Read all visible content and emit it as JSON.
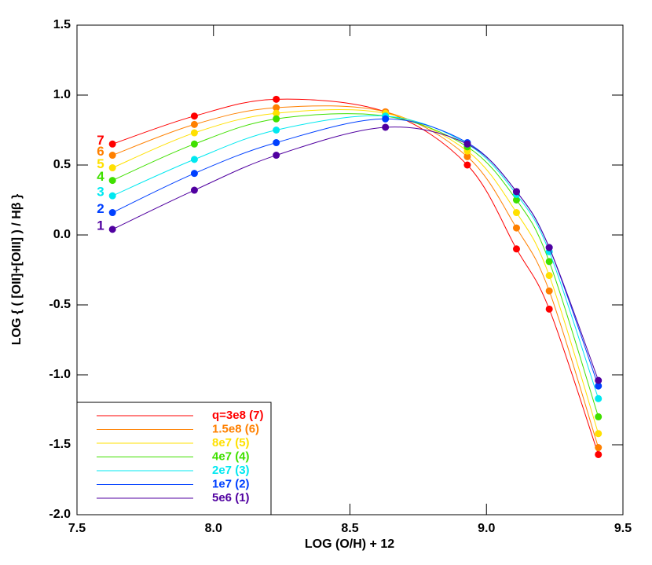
{
  "chart_data": {
    "type": "line",
    "x_label": "LOG (O/H) + 12",
    "y_label": "LOG { ( [OII]+[OIII] ) / Hβ }",
    "x": [
      7.63,
      7.93,
      8.23,
      8.63,
      8.93,
      9.11,
      9.23,
      9.41
    ],
    "series": [
      {
        "name": "q=3e8 (7)",
        "label": "7",
        "color": "#ff0000",
        "values": [
          0.65,
          0.85,
          0.97,
          0.88,
          0.5,
          -0.1,
          -0.53,
          -1.57
        ]
      },
      {
        "name": "1.5e8 (6)",
        "label": "6",
        "color": "#ff8000",
        "values": [
          0.57,
          0.79,
          0.91,
          0.88,
          0.56,
          0.05,
          -0.4,
          -1.52
        ]
      },
      {
        "name": "8e7 (5)",
        "label": "5",
        "color": "#ffe000",
        "values": [
          0.48,
          0.73,
          0.87,
          0.87,
          0.6,
          0.16,
          -0.29,
          -1.42
        ]
      },
      {
        "name": "4e7 (4)",
        "label": "4",
        "color": "#40e000",
        "values": [
          0.39,
          0.65,
          0.83,
          0.85,
          0.63,
          0.25,
          -0.19,
          -1.3
        ]
      },
      {
        "name": "2e7 (3)",
        "label": "3",
        "color": "#00e8f0",
        "values": [
          0.28,
          0.54,
          0.75,
          0.85,
          0.65,
          0.29,
          -0.12,
          -1.17
        ]
      },
      {
        "name": "1e7 (2)",
        "label": "2",
        "color": "#0040ff",
        "values": [
          0.16,
          0.44,
          0.66,
          0.83,
          0.66,
          0.31,
          -0.09,
          -1.08
        ]
      },
      {
        "name": "5e6 (1)",
        "label": "1",
        "color": "#5000a0",
        "values": [
          0.04,
          0.32,
          0.57,
          0.77,
          0.65,
          0.31,
          -0.09,
          -1.04
        ]
      }
    ],
    "xlim": [
      7.5,
      9.5
    ],
    "xticks": [
      7.5,
      {
        "value": 8,
        "label": "8.0"
      },
      8.5,
      {
        "value": 9,
        "label": "9.0"
      },
      9.5
    ],
    "ylim": [
      -2,
      1.5
    ],
    "yticks": [
      {
        "value": -2,
        "label": "-2.0"
      },
      -1.5,
      {
        "value": -1,
        "label": "-1.0"
      },
      -0.5,
      {
        "value": 0,
        "label": "0.0"
      },
      0.5,
      {
        "value": 1,
        "label": "1.0"
      },
      1.5
    ],
    "legend": "lower left"
  }
}
